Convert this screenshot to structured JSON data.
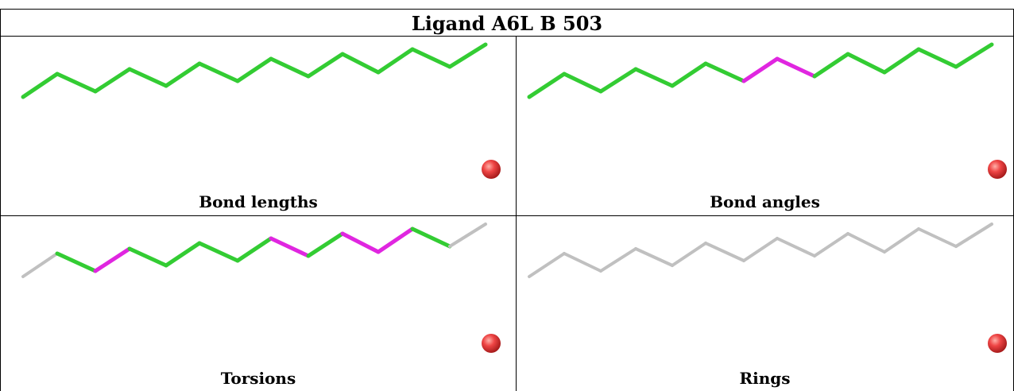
{
  "title": "Ligand A6L B 503",
  "colors": {
    "ok": "#33cc33",
    "outlier": "#e026e0",
    "none": "#c0c0c0",
    "atom": "#ee4444"
  },
  "panels": [
    {
      "caption": "Bond lengths",
      "segments": [
        "ok",
        "ok",
        "ok",
        "ok",
        "ok",
        "ok",
        "ok",
        "ok",
        "ok",
        "ok",
        "ok",
        "ok",
        "ok"
      ]
    },
    {
      "caption": "Bond angles",
      "segments": [
        "ok",
        "ok",
        "ok",
        "ok",
        "ok",
        "ok",
        "outlier",
        "outlier",
        "ok",
        "ok",
        "ok",
        "ok",
        "ok"
      ]
    },
    {
      "caption": "Torsions",
      "segments": [
        "none",
        "ok",
        "outlier",
        "ok",
        "ok",
        "ok",
        "ok",
        "outlier",
        "ok",
        "outlier",
        "outlier",
        "ok",
        "none"
      ]
    },
    {
      "caption": "Rings",
      "segments": [
        "none",
        "none",
        "none",
        "none",
        "none",
        "none",
        "none",
        "none",
        "none",
        "none",
        "none",
        "none",
        "none"
      ]
    }
  ]
}
